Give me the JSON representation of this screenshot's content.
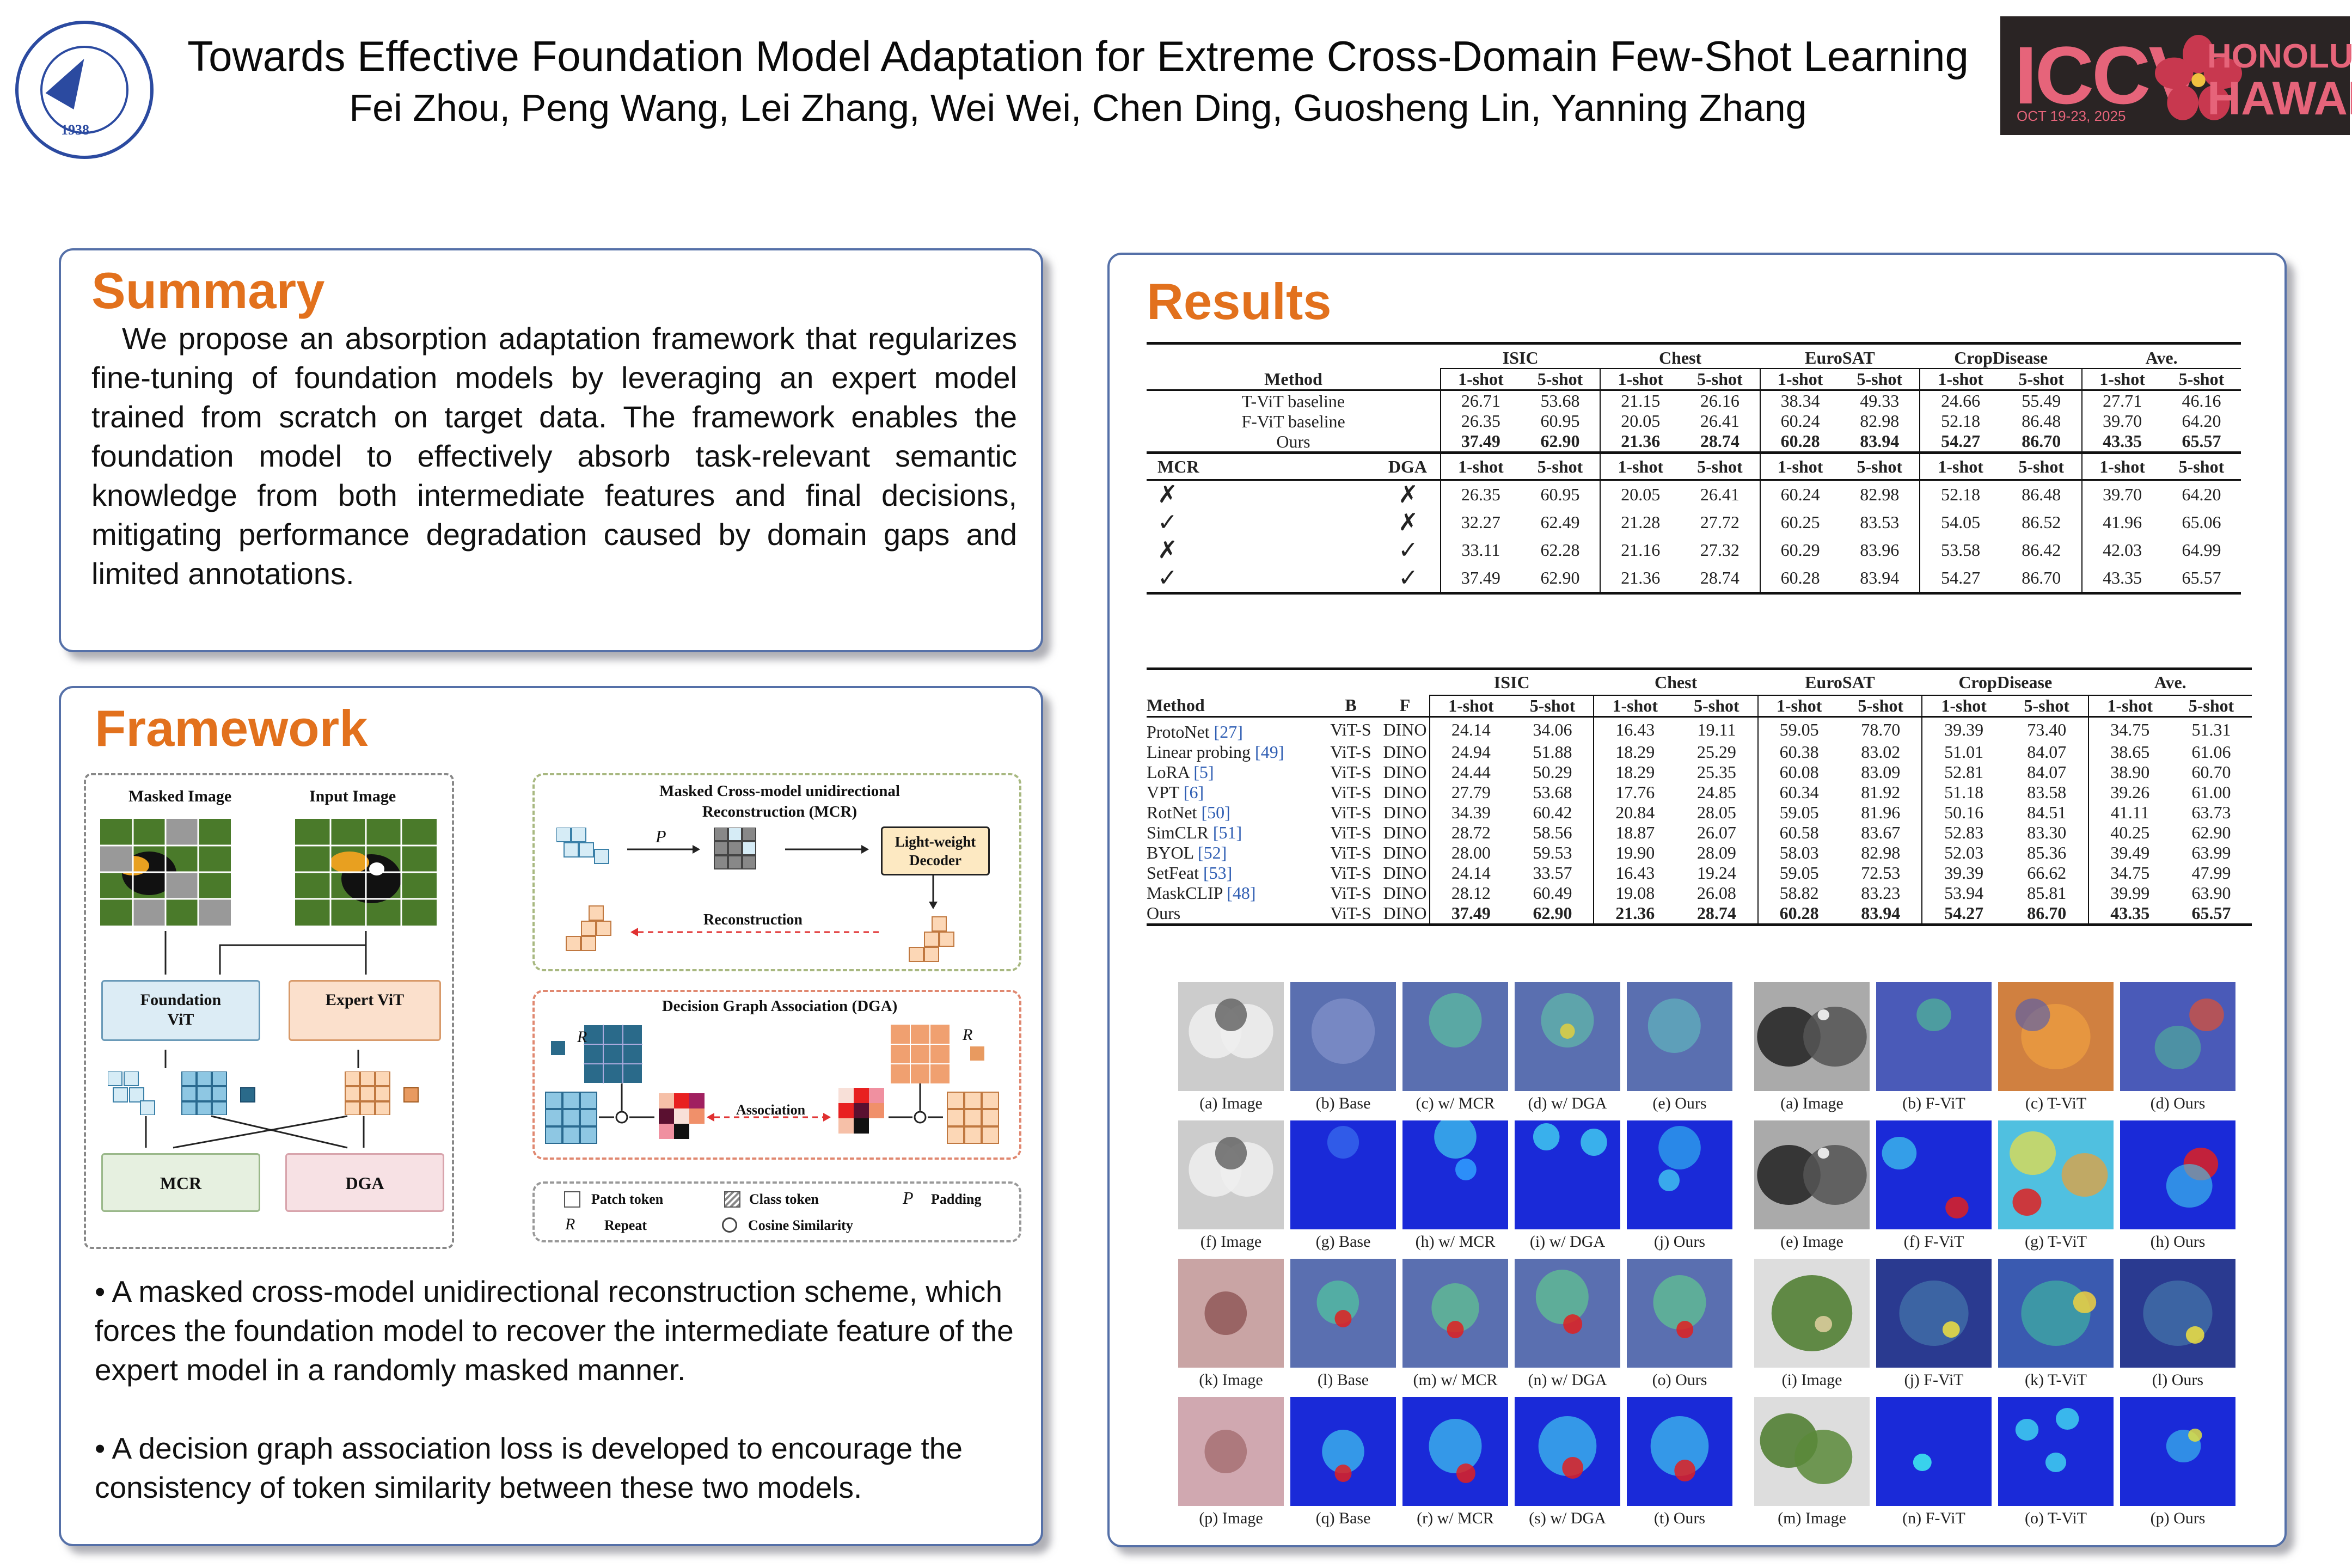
{
  "header": {
    "title": "Towards Effective Foundation Model Adaptation for Extreme Cross-Domain Few-Shot Learning",
    "authors": "Fei Zhou, Peng Wang, Lei Zhang, Wei Wei, Chen Ding, Guosheng Lin, Yanning Zhang",
    "left_logo_year": "1938",
    "right_logo": {
      "name": "ICCV",
      "date": "OCT 19-23, 2025",
      "city": "HONOLULU",
      "state": "HAWAII"
    }
  },
  "colors": {
    "heading": "#e2711d",
    "panel_border": "#5570a8",
    "foundation": "#dcecf5",
    "expert": "#fbe0cc",
    "mcr_box": "#e6f0e0",
    "dga_box": "#f7e1e4",
    "decoder": "#fde9c2"
  },
  "summary": {
    "heading": "Summary",
    "text": "We propose an absorption adaptation framework that regularizes fine-tuning of foundation models by leveraging an expert model trained from scratch on target data. The framework enables the foundation model to effectively absorb task-relevant semantic knowledge from both intermediate features and final decisions, mitigating performance degradation caused by domain gaps and limited annotations."
  },
  "framework": {
    "heading": "Framework",
    "masked_image": "Masked Image",
    "input_image": "Input Image",
    "foundation": "Foundation ViT",
    "expert": "Expert ViT",
    "mcr": "MCR",
    "dga": "DGA",
    "mcr_title": "Masked Cross-model unidirectional Reconstruction (MCR)",
    "p_label": "P",
    "decoder": "Light-weight Decoder",
    "reconstruction": "Reconstruction",
    "dga_title": "Decision Graph Association (DGA)",
    "r_label": "R",
    "association": "Association",
    "legend": {
      "patch_token": "Patch token",
      "class_token": "Class token",
      "padding": "Padding",
      "repeat": "Repeat",
      "cosine": "Cosine Similarity",
      "p": "P",
      "r": "R"
    },
    "bullets": [
      "•  A masked cross-model unidirectional reconstruction scheme, which forces the foundation model to recover the intermediate feature of the expert model in a randomly masked manner.",
      "• A decision graph association loss is developed to encourage the consistency of token similarity between these two models."
    ]
  },
  "results": {
    "heading": "Results",
    "table1": {
      "datasets": [
        "ISIC",
        "Chest",
        "EuroSAT",
        "CropDisease",
        "Ave."
      ],
      "shots": [
        "1-shot",
        "5-shot"
      ],
      "method_header": "Method",
      "rows": [
        {
          "name": "T-ViT baseline",
          "values": [
            "26.71",
            "53.68",
            "21.15",
            "26.16",
            "38.34",
            "49.33",
            "24.66",
            "55.49",
            "27.71",
            "46.16"
          ]
        },
        {
          "name": "F-ViT baseline",
          "values": [
            "26.35",
            "60.95",
            "20.05",
            "26.41",
            "60.24",
            "82.98",
            "52.18",
            "86.48",
            "39.70",
            "64.20"
          ]
        },
        {
          "name": "Ours",
          "values": [
            "37.49",
            "62.90",
            "21.36",
            "28.74",
            "60.28",
            "83.94",
            "54.27",
            "86.70",
            "43.35",
            "65.57"
          ],
          "bold": true
        }
      ],
      "ablation_header": {
        "mcr": "MCR",
        "dga": "DGA"
      },
      "ablation": [
        {
          "mcr": "✗",
          "dga": "✗",
          "values": [
            "26.35",
            "60.95",
            "20.05",
            "26.41",
            "60.24",
            "82.98",
            "52.18",
            "86.48",
            "39.70",
            "64.20"
          ]
        },
        {
          "mcr": "✓",
          "dga": "✗",
          "values": [
            "32.27",
            "62.49",
            "21.28",
            "27.72",
            "60.25",
            "83.53",
            "54.05",
            "86.52",
            "41.96",
            "65.06"
          ]
        },
        {
          "mcr": "✗",
          "dga": "✓",
          "values": [
            "33.11",
            "62.28",
            "21.16",
            "27.32",
            "60.29",
            "83.96",
            "53.58",
            "86.42",
            "42.03",
            "64.99"
          ]
        },
        {
          "mcr": "✓",
          "dga": "✓",
          "values": [
            "37.49",
            "62.90",
            "21.36",
            "28.74",
            "60.28",
            "83.94",
            "54.27",
            "86.70",
            "43.35",
            "65.57"
          ]
        }
      ]
    },
    "table2": {
      "headers": {
        "method": "Method",
        "b": "B",
        "f": "F"
      },
      "datasets": [
        "ISIC",
        "Chest",
        "EuroSAT",
        "CropDisease",
        "Ave."
      ],
      "shots": [
        "1-shot",
        "5-shot"
      ],
      "rows": [
        {
          "name": "ProtoNet",
          "ref": "[27]",
          "b": "ViT-S",
          "f": "DINO",
          "values": [
            "24.14",
            "34.06",
            "16.43",
            "19.11",
            "59.05",
            "78.70",
            "39.39",
            "73.40",
            "34.75",
            "51.31"
          ]
        },
        {
          "name": "Linear probing",
          "ref": "[49]",
          "b": "ViT-S",
          "f": "DINO",
          "values": [
            "24.94",
            "51.88",
            "18.29",
            "25.29",
            "60.38",
            "83.02",
            "51.01",
            "84.07",
            "38.65",
            "61.06"
          ]
        },
        {
          "name": "LoRA",
          "ref": "[5]",
          "b": "ViT-S",
          "f": "DINO",
          "values": [
            "24.44",
            "50.29",
            "18.29",
            "25.35",
            "60.08",
            "83.09",
            "52.81",
            "84.07",
            "38.90",
            "60.70"
          ]
        },
        {
          "name": "VPT",
          "ref": "[6]",
          "b": "ViT-S",
          "f": "DINO",
          "values": [
            "27.79",
            "53.68",
            "17.76",
            "24.85",
            "60.34",
            "81.92",
            "51.18",
            "83.58",
            "39.26",
            "61.00"
          ]
        },
        {
          "name": "RotNet",
          "ref": "[50]",
          "b": "ViT-S",
          "f": "DINO",
          "values": [
            "34.39",
            "60.42",
            "20.84",
            "28.05",
            "59.05",
            "81.96",
            "50.16",
            "84.51",
            "41.11",
            "63.73"
          ]
        },
        {
          "name": "SimCLR",
          "ref": "[51]",
          "b": "ViT-S",
          "f": "DINO",
          "values": [
            "28.72",
            "58.56",
            "18.87",
            "26.07",
            "60.58",
            "83.67",
            "52.83",
            "83.30",
            "40.25",
            "62.90"
          ]
        },
        {
          "name": "BYOL",
          "ref": "[52]",
          "b": "ViT-S",
          "f": "DINO",
          "values": [
            "28.00",
            "59.53",
            "19.90",
            "28.09",
            "58.03",
            "82.98",
            "52.03",
            "85.36",
            "39.49",
            "63.99"
          ]
        },
        {
          "name": "SetFeat",
          "ref": "[53]",
          "b": "ViT-S",
          "f": "DINO",
          "values": [
            "24.14",
            "33.57",
            "16.43",
            "19.24",
            "59.05",
            "72.53",
            "39.39",
            "66.62",
            "34.75",
            "47.99"
          ]
        },
        {
          "name": "MaskCLIP",
          "ref": "[48]",
          "b": "ViT-S",
          "f": "DINO",
          "values": [
            "28.12",
            "60.49",
            "19.08",
            "26.08",
            "58.82",
            "83.23",
            "53.94",
            "85.81",
            "39.99",
            "63.90"
          ]
        },
        {
          "name": "Ours",
          "ref": "",
          "b": "ViT-S",
          "f": "DINO",
          "values": [
            "37.49",
            "62.90",
            "21.36",
            "28.74",
            "60.28",
            "83.94",
            "54.27",
            "86.70",
            "43.35",
            "65.57"
          ],
          "bold": true
        }
      ]
    },
    "vis_left": [
      [
        "(a) Image",
        "(b) Base",
        "(c) w/ MCR",
        "(d) w/ DGA",
        "(e) Ours"
      ],
      [
        "(f) Image",
        "(g) Base",
        "(h) w/ MCR",
        "(i) w/ DGA",
        "(j) Ours"
      ],
      [
        "(k) Image",
        "(l) Base",
        "(m) w/ MCR",
        "(n) w/ DGA",
        "(o) Ours"
      ],
      [
        "(p) Image",
        "(q) Base",
        "(r) w/ MCR",
        "(s) w/ DGA",
        "(t) Ours"
      ]
    ],
    "vis_right": [
      [
        "(a) Image",
        "(b) F-ViT",
        "(c) T-ViT",
        "(d) Ours"
      ],
      [
        "(e) Image",
        "(f) F-ViT",
        "(g) T-ViT",
        "(h) Ours"
      ],
      [
        "(i) Image",
        "(j) F-ViT",
        "(k) T-ViT",
        "(l) Ours"
      ],
      [
        "(m) Image",
        "(n) F-ViT",
        "(o) T-ViT",
        "(p) Ours"
      ]
    ]
  }
}
